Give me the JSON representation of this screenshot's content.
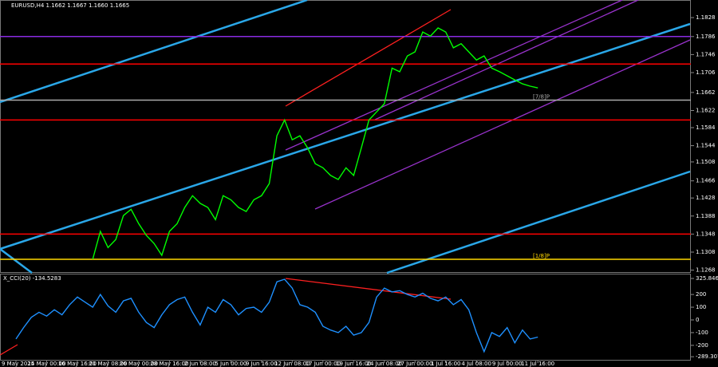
{
  "chart_data": [
    {
      "type": "line",
      "title": "EURUSD,H4  1.1662 1.1667 1.1660 1.1665",
      "color": "#00ff00",
      "categories": [
        "9 May 2025",
        null,
        null,
        null,
        "14 May 00:00",
        null,
        null,
        null,
        "16 May 16:00",
        null,
        null,
        null,
        "21 May 08:00",
        null,
        null,
        null,
        "26 May 00:00",
        null,
        null,
        null,
        "28 May 16:00",
        null,
        null,
        null,
        "2 Jun 08:00",
        null,
        null,
        null,
        "5 Jun 00:00",
        null,
        null,
        null,
        "9 Jun 16:00",
        null,
        null,
        null,
        "12 Jun 08:00",
        null,
        null,
        null,
        "17 Jun 00:00",
        null,
        null,
        null,
        "19 Jun 16:00",
        null,
        null,
        null,
        "24 Jun 08:00",
        null,
        null,
        null,
        "27 Jun 00:00",
        null,
        null,
        null,
        "1 Jul 16:00",
        null,
        null,
        null,
        "4 Jul 08:00",
        null,
        null,
        null,
        "9 Jul 00:00",
        null,
        null,
        null,
        "11 Jul 16:00"
      ],
      "values": [
        null,
        null,
        null,
        null,
        null,
        null,
        null,
        null,
        null,
        null,
        1.1292,
        1.1354,
        1.1318,
        1.1336,
        1.1389,
        1.1403,
        1.1371,
        1.1345,
        1.1327,
        1.1301,
        1.1354,
        1.1371,
        1.1407,
        1.1433,
        1.1416,
        1.1407,
        1.138,
        1.1433,
        1.1424,
        1.1407,
        1.1398,
        1.1424,
        1.1433,
        1.146,
        1.1566,
        1.1601,
        1.1557,
        1.1566,
        1.1539,
        1.1504,
        1.1495,
        1.1478,
        1.1469,
        1.1495,
        1.1478,
        1.1539,
        1.1601,
        1.1619,
        1.1637,
        1.1716,
        1.1708,
        1.1743,
        1.1752,
        1.1796,
        1.1787,
        1.1805,
        1.1796,
        1.1761,
        1.177,
        1.1752,
        1.1734,
        1.1743,
        1.1716,
        1.1708,
        1.1699,
        1.169,
        1.1681,
        1.1676,
        1.1672
      ],
      "ylim": [
        1.1262,
        1.1867
      ],
      "yticks": [
        1.1828,
        1.1786,
        1.1746,
        1.1706,
        1.1662,
        1.1622,
        1.1584,
        1.1544,
        1.1508,
        1.1466,
        1.1428,
        1.1388,
        1.1348,
        1.1308,
        1.1268
      ],
      "levels": [
        {
          "value": 1.1786,
          "color": "#8a2be2"
        },
        {
          "value": 1.1725,
          "color": "#ff0000"
        },
        {
          "value": 1.1645,
          "color": "#aaaaaa",
          "label": "[7/8]P"
        },
        {
          "value": 1.1601,
          "color": "#ff0000"
        },
        {
          "value": 1.1348,
          "color": "#ff0000"
        },
        {
          "value": 1.1292,
          "color": "#ffd700",
          "label": "[1/8]P"
        }
      ]
    },
    {
      "type": "line",
      "title": "X_CCI(20) -134.5283",
      "color": "#1e90ff",
      "values": [
        -150,
        -60,
        20,
        60,
        30,
        80,
        40,
        120,
        180,
        140,
        100,
        200,
        110,
        60,
        150,
        170,
        60,
        -20,
        -60,
        40,
        120,
        160,
        180,
        60,
        -40,
        100,
        60,
        160,
        120,
        40,
        90,
        100,
        60,
        140,
        300,
        320,
        250,
        120,
        100,
        60,
        -50,
        -80,
        -100,
        -50,
        -120,
        -100,
        -20,
        180,
        250,
        220,
        230,
        200,
        180,
        210,
        170,
        150,
        180,
        120,
        160,
        80,
        -100,
        -250,
        -100,
        -130,
        -60,
        -180,
        -80,
        -150,
        -135
      ],
      "ylim": [
        -320,
        370
      ],
      "yticks": [
        325.846,
        200,
        100,
        0,
        -100,
        -200,
        -289.307
      ]
    }
  ]
}
